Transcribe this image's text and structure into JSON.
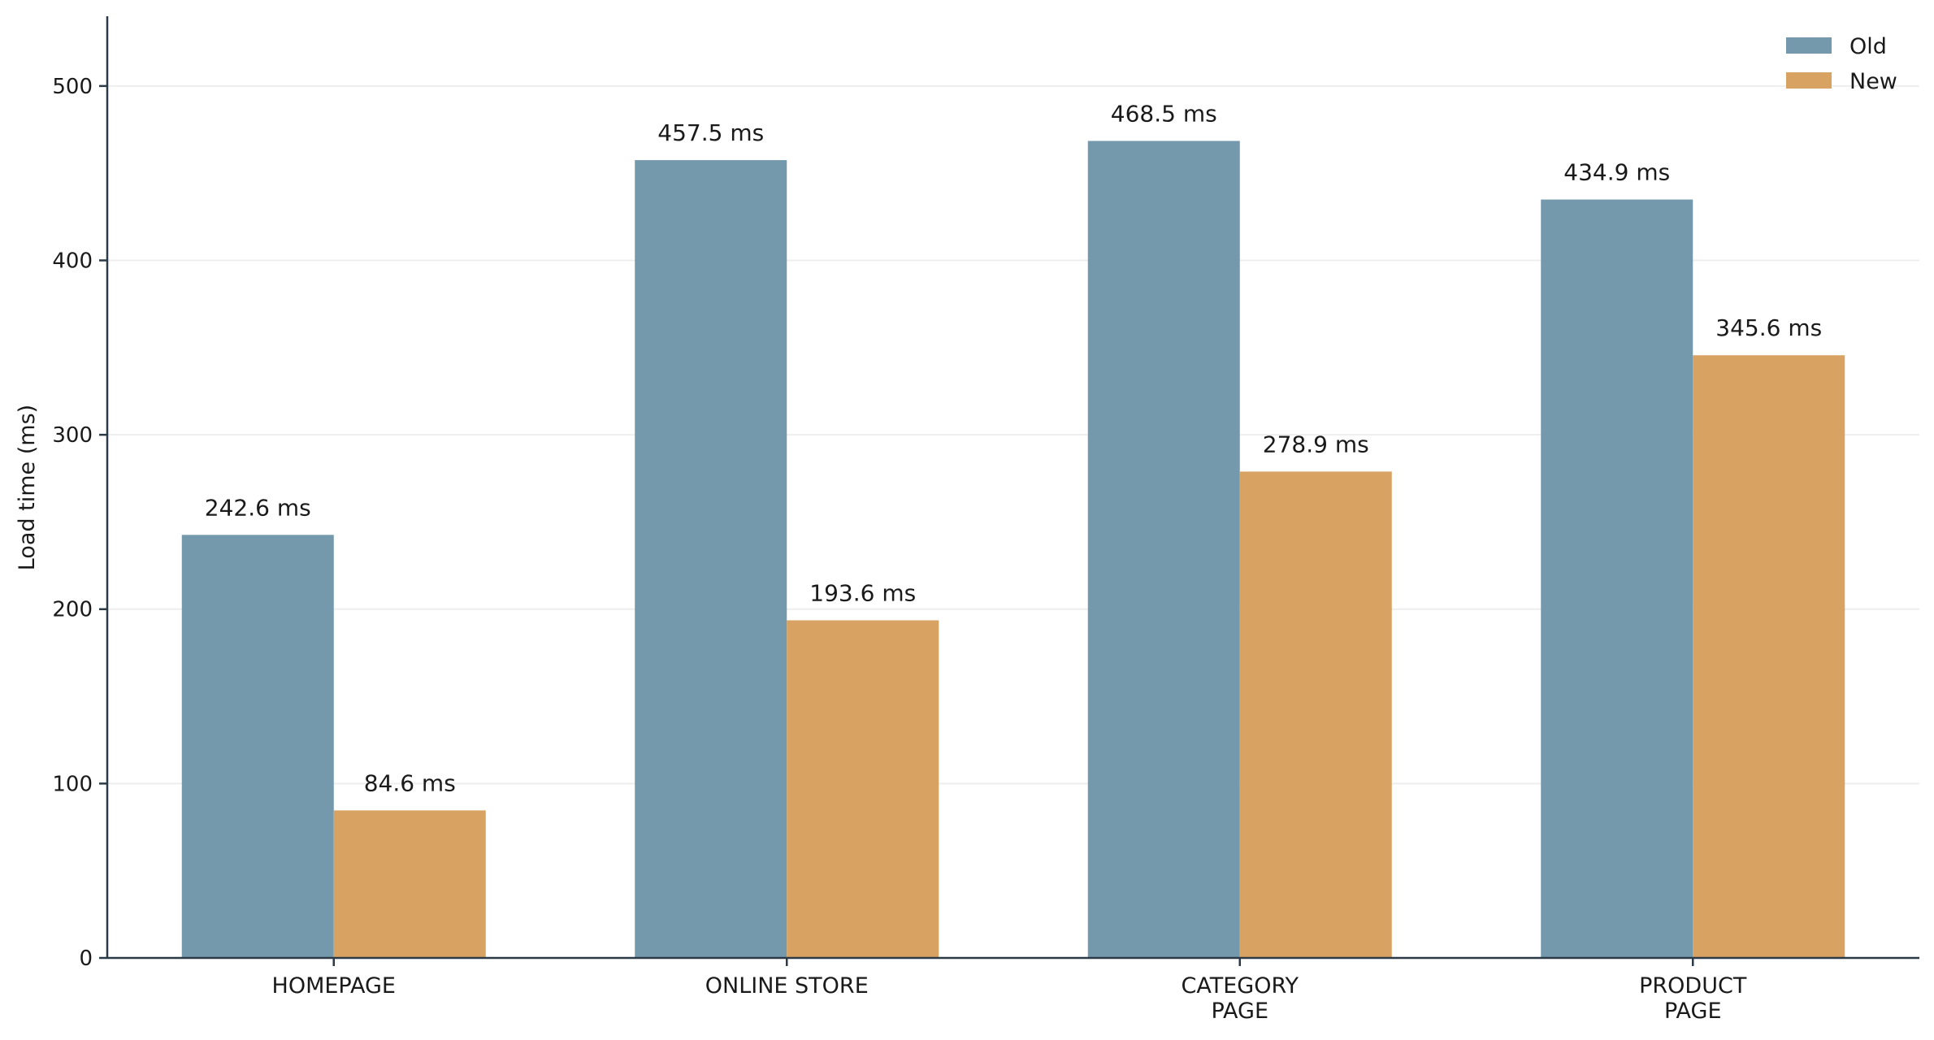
{
  "chart_data": {
    "type": "bar",
    "title": "",
    "xlabel": "",
    "ylabel": "Load time (ms)",
    "ylim": [
      0,
      540
    ],
    "yticks": [
      0,
      100,
      200,
      300,
      400,
      500
    ],
    "grid": true,
    "legend_position": "top-right",
    "categories": [
      [
        "HOMEPAGE"
      ],
      [
        "ONLINE STORE"
      ],
      [
        "CATEGORY",
        "PAGE"
      ],
      [
        "PRODUCT",
        "PAGE"
      ]
    ],
    "series": [
      {
        "name": "Old",
        "color": "#7499ad",
        "values": [
          242.6,
          457.5,
          468.5,
          434.9
        ],
        "labels": [
          "242.6 ms",
          "457.5 ms",
          "468.5 ms",
          "434.9 ms"
        ]
      },
      {
        "name": "New",
        "color": "#d8a262",
        "values": [
          84.6,
          193.6,
          278.9,
          345.6
        ],
        "labels": [
          "84.6 ms",
          "193.6 ms",
          "278.9 ms",
          "345.6 ms"
        ]
      }
    ]
  }
}
